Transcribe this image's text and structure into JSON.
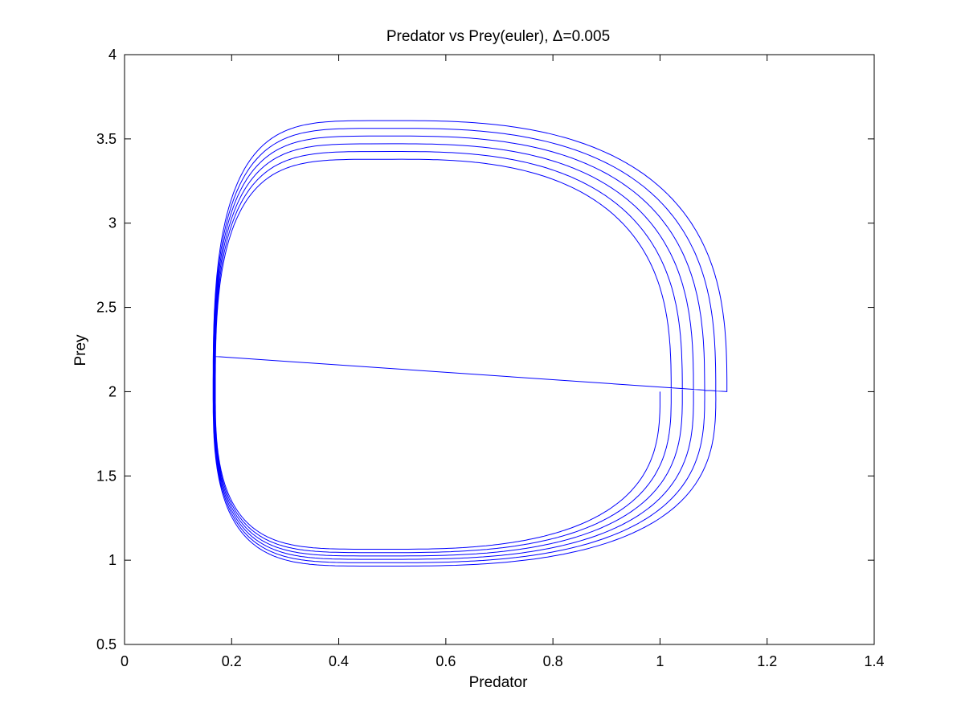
{
  "chart_data": {
    "type": "line",
    "title": "Predator vs Prey(euler), Δ=0.005",
    "xlabel": "Predator",
    "ylabel": "Prey",
    "xlim": [
      0,
      1.4
    ],
    "ylim": [
      0.5,
      4
    ],
    "xticks": [
      0,
      0.2,
      0.4,
      0.6,
      0.8,
      1,
      1.2,
      1.4
    ],
    "xtick_labels": [
      "0",
      "0.2",
      "0.4",
      "0.6",
      "0.8",
      "1",
      "1.2",
      "1.4"
    ],
    "yticks": [
      0.5,
      1,
      1.5,
      2,
      2.5,
      3,
      3.5,
      4
    ],
    "ytick_labels": [
      "0.5",
      "1",
      "1.5",
      "2",
      "2.5",
      "3",
      "3.5",
      "4"
    ],
    "grid": false,
    "legend": null,
    "series": [
      {
        "color": "#0000ff",
        "description_points": [
          {
            "x": 1.0,
            "y": 2.0
          },
          {
            "x": 0.5,
            "y": 1.07
          },
          {
            "x": 0.17,
            "y": 2.0
          },
          {
            "x": 0.5,
            "y": 3.62
          },
          {
            "x": 1.125,
            "y": 2.0
          },
          {
            "x": 0.5,
            "y": 0.95
          },
          {
            "x": 0.165,
            "y": 2.21
          }
        ],
        "start": {
          "x": 1.0,
          "y": 2.0
        },
        "end": {
          "x": 0.165,
          "y": 2.21
        },
        "loops": 6
      }
    ]
  }
}
